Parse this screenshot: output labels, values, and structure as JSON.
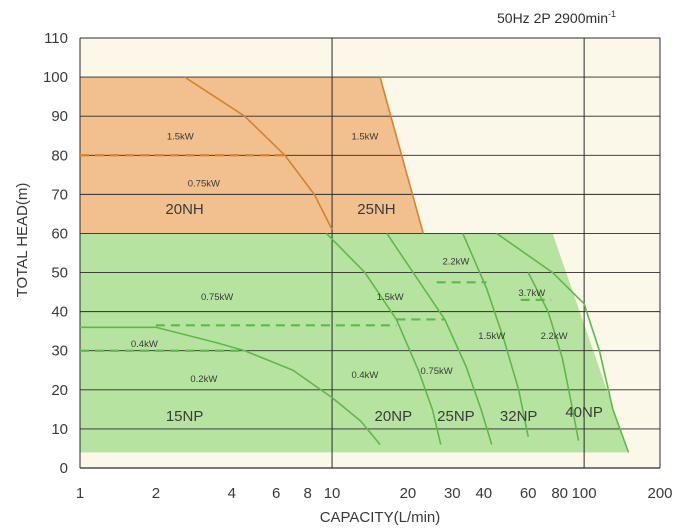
{
  "chart_data": {
    "type": "area",
    "condition": "50Hz 2P 2900min",
    "condition_sup": "-1",
    "xlabel": "CAPACITY(L/min)",
    "ylabel": "TOTAL HEAD(m)",
    "x_scale": "log",
    "xlim": [
      1,
      200
    ],
    "ylim": [
      0,
      110
    ],
    "x_ticks": [
      1,
      2,
      4,
      6,
      8,
      10,
      20,
      30,
      40,
      60,
      80,
      100,
      200
    ],
    "x_tick_labels": [
      "1",
      "2",
      "4",
      "6",
      "8",
      "10",
      "20",
      "30",
      "40",
      "60",
      "80",
      "100",
      "200"
    ],
    "y_ticks": [
      0,
      10,
      20,
      30,
      40,
      50,
      60,
      70,
      80,
      90,
      100,
      110
    ],
    "y_tick_labels": [
      "0",
      "10",
      "20",
      "30",
      "40",
      "50",
      "60",
      "70",
      "80",
      "90",
      "100",
      "110"
    ],
    "grid": true,
    "colors": {
      "nh_fill": "#f1c08e",
      "np_fill": "#b6e3a0",
      "nh_line": "#d9812c",
      "np_line": "#5fb94a",
      "grid": "#2b2b2b",
      "background": "#fbf7e9"
    },
    "regions": [
      {
        "series": "nh",
        "points": [
          [
            1,
            100
          ],
          [
            15.5,
            100
          ],
          [
            23,
            60
          ],
          [
            1,
            60
          ]
        ]
      },
      {
        "series": "np",
        "points": [
          [
            1,
            60
          ],
          [
            75,
            60
          ],
          [
            150,
            4
          ],
          [
            1,
            4
          ]
        ]
      }
    ],
    "boundaries": [
      {
        "series": "nh",
        "points": [
          [
            15.5,
            100
          ],
          [
            23,
            60
          ]
        ]
      },
      {
        "series": "np",
        "points": [
          [
            45,
            60
          ],
          [
            75,
            50
          ],
          [
            100,
            42
          ],
          [
            115,
            30
          ],
          [
            130,
            15
          ],
          [
            150,
            4
          ]
        ]
      }
    ],
    "curves": [
      {
        "series": "nh",
        "style": "solid",
        "points": [
          [
            2.6,
            100
          ],
          [
            4.5,
            90
          ],
          [
            6.5,
            80
          ],
          [
            8.5,
            70
          ],
          [
            10,
            61
          ]
        ]
      },
      {
        "series": "nh",
        "style": "dashed",
        "points": [
          [
            1,
            80
          ],
          [
            6.5,
            80
          ]
        ]
      },
      {
        "series": "np",
        "style": "solid",
        "points": [
          [
            1,
            36
          ],
          [
            2,
            36
          ],
          [
            3.5,
            32
          ],
          [
            4.5,
            30
          ],
          [
            7,
            25
          ],
          [
            10,
            18
          ],
          [
            13,
            12
          ],
          [
            15.5,
            6
          ]
        ]
      },
      {
        "series": "np",
        "style": "dashed",
        "points": [
          [
            1,
            30
          ],
          [
            4.5,
            30
          ]
        ]
      },
      {
        "series": "np",
        "style": "solid",
        "points": [
          [
            9.5,
            60
          ],
          [
            13.5,
            50
          ],
          [
            18,
            38
          ],
          [
            22,
            25
          ],
          [
            25,
            15
          ],
          [
            27,
            6
          ]
        ]
      },
      {
        "series": "np",
        "style": "dashed",
        "points": [
          [
            2,
            36.5
          ],
          [
            18,
            36.5
          ]
        ]
      },
      {
        "series": "np",
        "style": "solid",
        "points": [
          [
            16.5,
            60
          ],
          [
            22,
            48
          ],
          [
            28,
            38
          ],
          [
            34,
            26
          ],
          [
            39,
            15
          ],
          [
            43,
            6
          ]
        ]
      },
      {
        "series": "np",
        "style": "dashed",
        "points": [
          [
            18,
            38
          ],
          [
            28,
            38
          ]
        ]
      },
      {
        "series": "np",
        "style": "solid",
        "points": [
          [
            33,
            60
          ],
          [
            41,
            46
          ],
          [
            48,
            33
          ],
          [
            55,
            20
          ],
          [
            60,
            8
          ]
        ]
      },
      {
        "series": "np",
        "style": "dashed",
        "points": [
          [
            26,
            47.5
          ],
          [
            41,
            47.5
          ]
        ]
      },
      {
        "series": "np",
        "style": "solid",
        "points": [
          [
            60,
            50
          ],
          [
            72,
            40
          ],
          [
            82,
            28
          ],
          [
            90,
            15
          ],
          [
            95,
            7
          ]
        ]
      },
      {
        "series": "np",
        "style": "dashed",
        "points": [
          [
            56,
            43
          ],
          [
            74,
            43
          ]
        ]
      }
    ],
    "region_labels": [
      {
        "text": "20NH",
        "x": 2.6,
        "y": 65
      },
      {
        "text": "25NH",
        "x": 15,
        "y": 65
      },
      {
        "text": "15NP",
        "x": 2.6,
        "y": 12
      },
      {
        "text": "20NP",
        "x": 17.5,
        "y": 12
      },
      {
        "text": "25NP",
        "x": 31,
        "y": 12
      },
      {
        "text": "32NP",
        "x": 55,
        "y": 12
      },
      {
        "text": "40NP",
        "x": 100,
        "y": 13
      }
    ],
    "motor_labels": [
      {
        "text": "1.5kW",
        "x": 2.5,
        "y": 84
      },
      {
        "text": "0.75kW",
        "x": 3.1,
        "y": 72
      },
      {
        "text": "1.5kW",
        "x": 13.5,
        "y": 84
      },
      {
        "text": "0.75kW",
        "x": 3.5,
        "y": 43
      },
      {
        "text": "0.4kW",
        "x": 1.8,
        "y": 31
      },
      {
        "text": "0.2kW",
        "x": 3.1,
        "y": 22
      },
      {
        "text": "1.5kW",
        "x": 17,
        "y": 43
      },
      {
        "text": "0.4kW",
        "x": 13.5,
        "y": 23
      },
      {
        "text": "2.2kW",
        "x": 31,
        "y": 52
      },
      {
        "text": "0.75kW",
        "x": 26,
        "y": 24
      },
      {
        "text": "3.7kW",
        "x": 62,
        "y": 44
      },
      {
        "text": "1.5kW",
        "x": 43,
        "y": 33
      },
      {
        "text": "2.2kW",
        "x": 76,
        "y": 33
      }
    ]
  }
}
